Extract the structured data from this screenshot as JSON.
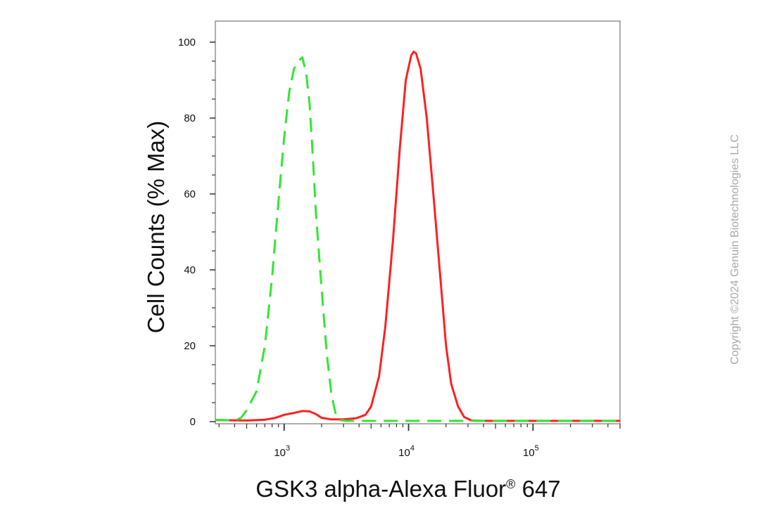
{
  "chart_data": {
    "type": "line",
    "xlabel": "GSK3 alpha-Alexa Fluor",
    "xlabel_mark": "®",
    "xlabel_suffix": " 647",
    "ylabel": "Cell Counts (% Max)",
    "x_scale": "log",
    "xlim": [
      280,
      500000
    ],
    "ylim": [
      0,
      105
    ],
    "y_ticks": [
      0,
      20,
      40,
      60,
      80,
      100
    ],
    "x_ticks": [
      {
        "value": 1000,
        "base": "10",
        "exp": "3"
      },
      {
        "value": 10000,
        "base": "10",
        "exp": "4"
      },
      {
        "value": 100000,
        "base": "10",
        "exp": "5"
      }
    ],
    "grid": false,
    "series": [
      {
        "color": "#ff2020",
        "style": "solid",
        "points": [
          [
            280,
            0.4
          ],
          [
            500,
            0.3
          ],
          [
            700,
            0.5
          ],
          [
            850,
            1.0
          ],
          [
            1000,
            1.8
          ],
          [
            1200,
            2.3
          ],
          [
            1400,
            2.8
          ],
          [
            1600,
            2.7
          ],
          [
            1800,
            2.0
          ],
          [
            2000,
            1.0
          ],
          [
            2400,
            0.6
          ],
          [
            3000,
            0.6
          ],
          [
            3800,
            0.9
          ],
          [
            4500,
            1.8
          ],
          [
            5000,
            4
          ],
          [
            5800,
            12
          ],
          [
            6500,
            25
          ],
          [
            7500,
            48
          ],
          [
            8500,
            72
          ],
          [
            9500,
            90
          ],
          [
            10500,
            96.5
          ],
          [
            11000,
            97.5
          ],
          [
            11500,
            97
          ],
          [
            12500,
            93
          ],
          [
            14000,
            80
          ],
          [
            16000,
            58
          ],
          [
            18000,
            38
          ],
          [
            20000,
            20
          ],
          [
            22000,
            10
          ],
          [
            25000,
            4
          ],
          [
            28000,
            1.2
          ],
          [
            32000,
            0.3
          ],
          [
            40000,
            0.2
          ],
          [
            100000,
            0.2
          ],
          [
            500000,
            0.2
          ]
        ]
      },
      {
        "color": "#33e633",
        "style": "dashed",
        "points": [
          [
            280,
            0.5
          ],
          [
            400,
            0.3
          ],
          [
            450,
            1
          ],
          [
            500,
            3
          ],
          [
            600,
            8
          ],
          [
            700,
            20
          ],
          [
            800,
            38
          ],
          [
            900,
            58
          ],
          [
            1000,
            75
          ],
          [
            1100,
            87
          ],
          [
            1200,
            93
          ],
          [
            1300,
            95
          ],
          [
            1400,
            96
          ],
          [
            1500,
            92
          ],
          [
            1600,
            84
          ],
          [
            1700,
            70
          ],
          [
            1800,
            55
          ],
          [
            2000,
            35
          ],
          [
            2200,
            18
          ],
          [
            2400,
            7
          ],
          [
            2600,
            2
          ],
          [
            2800,
            0.4
          ],
          [
            3200,
            0.2
          ],
          [
            10000,
            0.2
          ],
          [
            500000,
            0.2
          ]
        ]
      }
    ]
  },
  "watermark": "Copyright ©2024 Genuin Biotechnologies LLC"
}
